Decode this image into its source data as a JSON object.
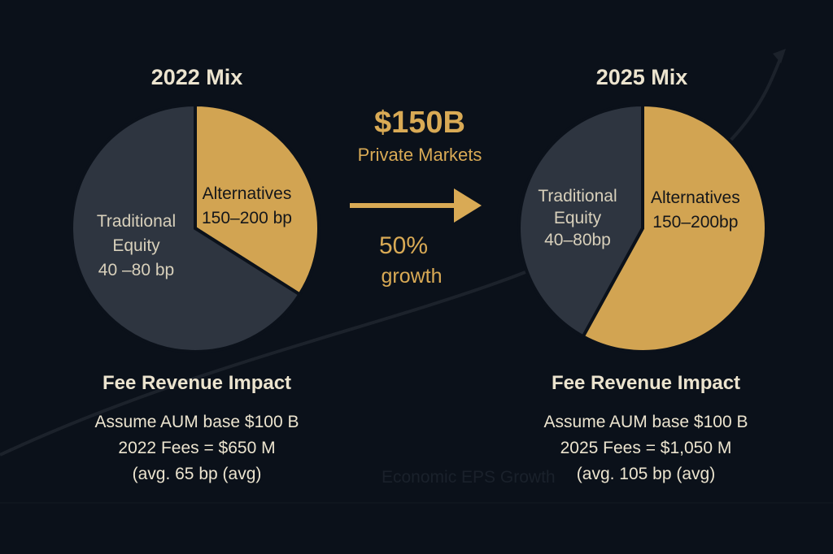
{
  "colors": {
    "background": "#0b111a",
    "alternatives": "#d2a452",
    "traditional": "#2e3540",
    "accent": "#d9aa55",
    "text": "#ece4cf"
  },
  "chart_data": [
    {
      "type": "pie",
      "title": "2022 Mix",
      "slices": [
        {
          "name": "Alternatives",
          "label": "Alternatives",
          "sublabel": "150–200 bp",
          "value": 34
        },
        {
          "name": "Traditional Equity",
          "label": "Traditional",
          "label2": "Equity",
          "sublabel": "40 –80 bp",
          "value": 66
        }
      ]
    },
    {
      "type": "pie",
      "title": "2025 Mix",
      "slices": [
        {
          "name": "Alternatives",
          "label": "Alternatives",
          "sublabel": "150–200bp",
          "value": 58
        },
        {
          "name": "Traditional Equity",
          "label": "Traditional",
          "label2": "Equity",
          "sublabel": "40–80bp",
          "value": 42
        }
      ]
    }
  ],
  "center": {
    "amount": "$150B",
    "amount_label": "Private Markets",
    "growth": "50%",
    "growth_label": "growth"
  },
  "left_fees": {
    "heading": "Fee Revenue Impact",
    "line1": "Assume AUM base $100 B",
    "line2": "2022 Fees = $650 M",
    "line3": "(avg. 65 bp (avg)"
  },
  "right_fees": {
    "heading": "Fee Revenue Impact",
    "line1": "Assume AUM base $100 B",
    "line2": "2025 Fees = $1,050 M",
    "line3": "(avg. 105 bp (avg)"
  },
  "watermark": "Economic EPS Growth"
}
